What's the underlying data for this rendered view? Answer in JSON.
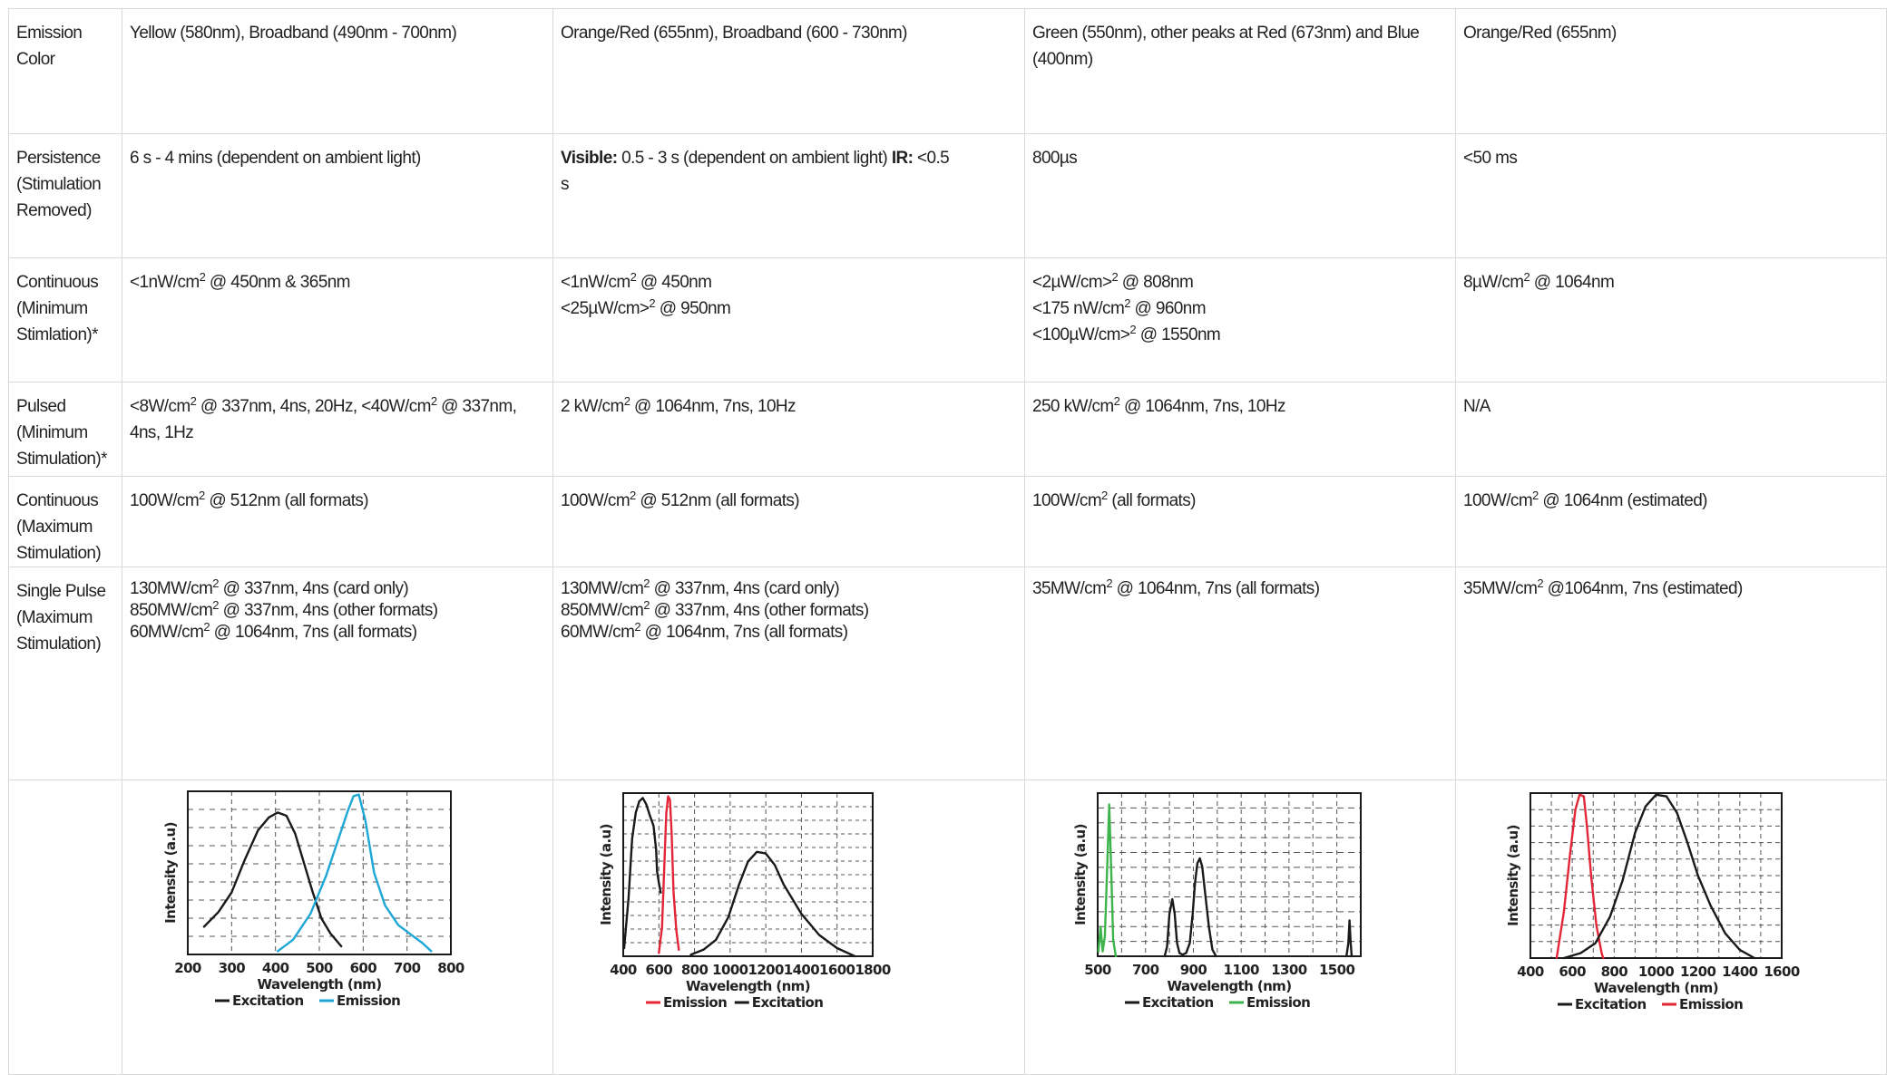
{
  "rows": [
    {
      "label": [
        "Emission",
        "Color"
      ],
      "cells": [
        [
          [
            "Yellow (580nm), Broadband (490nm - 700nm)"
          ]
        ],
        [
          [
            "Orange/Red (655nm), Broadband (600 - 730nm)"
          ]
        ],
        [
          [
            "Green (550nm), other peaks at Red (673nm) and Blue"
          ],
          [
            "(400nm)"
          ]
        ],
        [
          [
            "Orange/Red (655nm)"
          ]
        ]
      ]
    },
    {
      "label": [
        "Persistence",
        "(Stimulation",
        "Removed)"
      ],
      "cells": [
        [
          [
            "6 s - 4 mins (dependent on ambient light)"
          ]
        ],
        [
          [
            {
              "b": "Visible:"
            },
            " 0.5 - 3 s (dependent on ambient light) ",
            {
              "b": "IR:"
            },
            " <0.5"
          ],
          [
            "s"
          ]
        ],
        [
          [
            "800µs"
          ]
        ],
        [
          [
            "<50 ms"
          ]
        ]
      ]
    },
    {
      "label": [
        "Continuous",
        "(Minimum",
        "Stimlation)*"
      ],
      "cells": [
        [
          [
            "<1nW/cm",
            {
              "sup": "2"
            },
            " @ 450nm & 365nm"
          ]
        ],
        [
          [
            "<1nW/cm",
            {
              "sup": "2"
            },
            " @ 450nm"
          ],
          [
            "<25µW/cm>",
            {
              "sup": "2"
            },
            " @ 950nm"
          ]
        ],
        [
          [
            "<2µW/cm>",
            {
              "sup": "2"
            },
            " @ 808nm"
          ],
          [
            "<175 nW/cm",
            {
              "sup": "2"
            },
            " @ 960nm"
          ],
          [
            "<100µW/cm>",
            {
              "sup": "2"
            },
            " @ 1550nm"
          ]
        ],
        [
          [
            "8µW/cm",
            {
              "sup": "2"
            },
            " @ 1064nm"
          ]
        ]
      ]
    },
    {
      "label": [
        "Pulsed",
        "(Minimum",
        "Stimulation)*"
      ],
      "cells": [
        [
          [
            "<8W/cm",
            {
              "sup": "2"
            },
            " @ 337nm, 4ns, 20Hz, <40W/cm",
            {
              "sup": "2"
            },
            " @ 337nm,"
          ],
          [
            "4ns, 1Hz"
          ]
        ],
        [
          [
            "2 kW/cm",
            {
              "sup": "2"
            },
            " @ 1064nm, 7ns, 10Hz"
          ]
        ],
        [
          [
            "250 kW/cm",
            {
              "sup": "2"
            },
            " @ 1064nm, 7ns, 10Hz"
          ]
        ],
        [
          [
            "N/A"
          ]
        ]
      ]
    },
    {
      "label": [
        "Continuous",
        "(Maximum",
        "Stimulation)"
      ],
      "cells": [
        [
          [
            "100W/cm",
            {
              "sup": "2"
            },
            " @ 512nm (all formats)"
          ]
        ],
        [
          [
            "100W/cm",
            {
              "sup": "2"
            },
            " @ 512nm (all formats)"
          ]
        ],
        [
          [
            "100W/cm",
            {
              "sup": "2"
            },
            " (all formats)"
          ]
        ],
        [
          [
            "100W/cm",
            {
              "sup": "2"
            },
            " @ 1064nm (estimated)"
          ]
        ]
      ]
    },
    {
      "label": [
        "Single Pulse",
        "(Maximum",
        "Stimulation)"
      ],
      "cells": [
        [
          [
            "130MW/cm",
            {
              "sup": "2"
            },
            " @ 337nm, 4ns (card only)"
          ],
          [
            "850MW/cm",
            {
              "sup": "2"
            },
            " @ 337nm, 4ns (other formats)"
          ],
          [
            "60MW/cm",
            {
              "sup": "2"
            },
            " @ 1064nm, 7ns (all formats)"
          ]
        ],
        [
          [
            "130MW/cm",
            {
              "sup": "2"
            },
            " @ 337nm, 4ns (card only)"
          ],
          [
            "850MW/cm",
            {
              "sup": "2"
            },
            " @ 337nm, 4ns (other formats)"
          ],
          [
            "60MW/cm",
            {
              "sup": "2"
            },
            " @ 1064nm, 7ns (all formats)"
          ]
        ],
        [
          [
            "35MW/cm",
            {
              "sup": "2"
            },
            " @ 1064nm, 7ns (all formats)"
          ]
        ],
        [
          [
            "35MW/cm",
            {
              "sup": "2"
            },
            " @1064nm, 7ns (estimated)"
          ]
        ]
      ]
    }
  ],
  "colors": {
    "excitation": "#1a1a1a",
    "emission_cyan": "#1ca7d6",
    "emission_red": "#e32636",
    "emission_green": "#3cb44b",
    "grid": "#555555",
    "cell_border": "#d9d9d9"
  },
  "chart_data": [
    {
      "type": "line",
      "title": "",
      "xlabel": "Wavelength (nm)",
      "ylabel": "Intensity (a.u)",
      "xlim": [
        200,
        800
      ],
      "ylim": [
        0,
        1
      ],
      "xticks": [
        200,
        300,
        400,
        500,
        600,
        700,
        800
      ],
      "grid": true,
      "legend": "bottom",
      "legend_order": [
        "Excitation",
        "Emission"
      ],
      "series": [
        {
          "name": "Excitation",
          "color": "#1a1a1a",
          "points": [
            [
              237,
              0.17
            ],
            [
              270,
              0.26
            ],
            [
              300,
              0.38
            ],
            [
              330,
              0.58
            ],
            [
              360,
              0.76
            ],
            [
              385,
              0.84
            ],
            [
              405,
              0.87
            ],
            [
              425,
              0.85
            ],
            [
              445,
              0.74
            ],
            [
              465,
              0.56
            ],
            [
              485,
              0.38
            ],
            [
              505,
              0.22
            ],
            [
              525,
              0.13
            ],
            [
              550,
              0.05
            ]
          ]
        },
        {
          "name": "Emission",
          "color": "#1ca7d6",
          "points": [
            [
              405,
              0.02
            ],
            [
              440,
              0.09
            ],
            [
              480,
              0.25
            ],
            [
              515,
              0.48
            ],
            [
              545,
              0.72
            ],
            [
              565,
              0.88
            ],
            [
              578,
              0.97
            ],
            [
              590,
              0.98
            ],
            [
              605,
              0.82
            ],
            [
              625,
              0.5
            ],
            [
              650,
              0.3
            ],
            [
              680,
              0.18
            ],
            [
              710,
              0.12
            ],
            [
              735,
              0.07
            ],
            [
              755,
              0.02
            ]
          ]
        }
      ]
    },
    {
      "type": "line",
      "title": "",
      "xlabel": "Wavelength (nm)",
      "ylabel": "Intensity (a.u)",
      "xlim": [
        400,
        1800
      ],
      "ylim": [
        0,
        1
      ],
      "xticks": [
        400,
        600,
        800,
        1000,
        1200,
        1400,
        1600,
        1800
      ],
      "grid": true,
      "legend": "bottom",
      "legend_order": [
        "Emission",
        "Excitation"
      ],
      "series": [
        {
          "name": "Excitation",
          "color": "#1a1a1a",
          "points": [
            [
              405,
              0.05
            ],
            [
              430,
              0.36
            ],
            [
              450,
              0.72
            ],
            [
              470,
              0.88
            ],
            [
              490,
              0.95
            ],
            [
              510,
              0.97
            ],
            [
              530,
              0.93
            ],
            [
              550,
              0.86
            ],
            [
              570,
              0.8
            ],
            [
              585,
              0.65
            ],
            [
              590,
              0.52
            ],
            [
              600,
              0.45
            ],
            [
              610,
              0.39
            ]
          ]
        },
        {
          "name": "Emission",
          "color": "#e32636",
          "points": [
            [
              600,
              0.02
            ],
            [
              618,
              0.18
            ],
            [
              632,
              0.6
            ],
            [
              642,
              0.88
            ],
            [
              652,
              0.98
            ],
            [
              662,
              0.96
            ],
            [
              672,
              0.75
            ],
            [
              682,
              0.4
            ],
            [
              698,
              0.16
            ],
            [
              712,
              0.04
            ]
          ]
        },
        {
          "name": "Excitation",
          "color": "#1a1a1a",
          "points": [
            [
              780,
              0.01
            ],
            [
              850,
              0.04
            ],
            [
              920,
              0.1
            ],
            [
              990,
              0.24
            ],
            [
              1050,
              0.44
            ],
            [
              1100,
              0.58
            ],
            [
              1150,
              0.64
            ],
            [
              1200,
              0.63
            ],
            [
              1250,
              0.56
            ],
            [
              1300,
              0.44
            ],
            [
              1400,
              0.26
            ],
            [
              1500,
              0.13
            ],
            [
              1600,
              0.05
            ],
            [
              1700,
              0.0
            ]
          ]
        }
      ]
    },
    {
      "type": "line",
      "title": "",
      "xlabel": "Wavelength (nm)",
      "ylabel": "Intensity (a.u)",
      "xlim": [
        500,
        1600
      ],
      "ylim": [
        0,
        1
      ],
      "xticks": [
        500,
        700,
        900,
        1100,
        1300,
        1500
      ],
      "grid": true,
      "legend": "bottom",
      "legend_order": [
        "Excitation",
        "Emission"
      ],
      "series": [
        {
          "name": "Emission",
          "color": "#3cb44b",
          "points": [
            [
              503,
              0.03
            ],
            [
              512,
              0.18
            ],
            [
              521,
              0.03
            ],
            [
              530,
              0.12
            ],
            [
              540,
              0.55
            ],
            [
              548,
              0.93
            ],
            [
              556,
              0.55
            ],
            [
              565,
              0.1
            ],
            [
              576,
              0.0
            ]
          ]
        },
        {
          "name": "Excitation",
          "color": "#1a1a1a",
          "points": [
            [
              780,
              0.0
            ],
            [
              790,
              0.06
            ],
            [
              800,
              0.26
            ],
            [
              812,
              0.35
            ],
            [
              822,
              0.26
            ],
            [
              832,
              0.08
            ],
            [
              842,
              0.02
            ],
            [
              855,
              0.01
            ],
            [
              870,
              0.02
            ],
            [
              885,
              0.08
            ],
            [
              897,
              0.26
            ],
            [
              907,
              0.45
            ],
            [
              917,
              0.57
            ],
            [
              927,
              0.6
            ],
            [
              937,
              0.55
            ],
            [
              950,
              0.38
            ],
            [
              965,
              0.18
            ],
            [
              980,
              0.04
            ],
            [
              995,
              0.0
            ]
          ]
        },
        {
          "name": "Excitation",
          "color": "#1a1a1a",
          "points": [
            [
              1540,
              0.0
            ],
            [
              1548,
              0.08
            ],
            [
              1553,
              0.22
            ],
            [
              1558,
              0.08
            ],
            [
              1562,
              0.0
            ]
          ]
        }
      ]
    },
    {
      "type": "line",
      "title": "",
      "xlabel": "Wavelength (nm)",
      "ylabel": "Intensity (a.u)",
      "xlim": [
        400,
        1600
      ],
      "ylim": [
        0,
        1
      ],
      "xticks": [
        400,
        600,
        800,
        1000,
        1200,
        1400,
        1600
      ],
      "grid": true,
      "legend": "bottom",
      "legend_order": [
        "Excitation",
        "Emission"
      ],
      "series": [
        {
          "name": "Emission",
          "color": "#e32636",
          "points": [
            [
              525,
              0.0
            ],
            [
              560,
              0.28
            ],
            [
              590,
              0.64
            ],
            [
              615,
              0.9
            ],
            [
              635,
              0.99
            ],
            [
              655,
              0.98
            ],
            [
              670,
              0.8
            ],
            [
              690,
              0.5
            ],
            [
              715,
              0.2
            ],
            [
              740,
              0.03
            ],
            [
              748,
              0.0
            ]
          ]
        },
        {
          "name": "Excitation",
          "color": "#1a1a1a",
          "points": [
            [
              560,
              0.0
            ],
            [
              640,
              0.03
            ],
            [
              710,
              0.09
            ],
            [
              780,
              0.25
            ],
            [
              840,
              0.47
            ],
            [
              900,
              0.76
            ],
            [
              950,
              0.92
            ],
            [
              1000,
              0.99
            ],
            [
              1050,
              0.98
            ],
            [
              1100,
              0.88
            ],
            [
              1150,
              0.7
            ],
            [
              1200,
              0.5
            ],
            [
              1260,
              0.32
            ],
            [
              1330,
              0.15
            ],
            [
              1400,
              0.05
            ],
            [
              1470,
              0.0
            ]
          ]
        }
      ]
    }
  ]
}
